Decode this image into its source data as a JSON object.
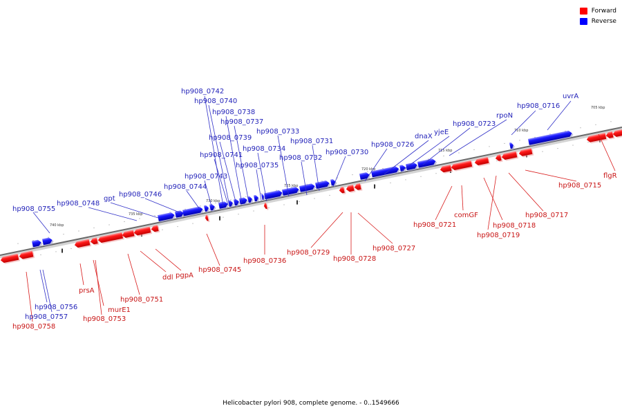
{
  "legend": {
    "forward_label": "Forward",
    "reverse_label": "Reverse",
    "forward_color": "#ff0000",
    "reverse_color": "#0000ff"
  },
  "caption": "Helicobacter pylori 908, complete genome. - 0..1549666",
  "scale_marks": [
    "740 kbp",
    "735 kbp",
    "730 kbp",
    "725 kbp",
    "720 kbp",
    "715 kbp",
    "710 kbp",
    "705 kbp"
  ],
  "reverse_labels": [
    "hp908_0755",
    "hp908_0748",
    "gpt",
    "hp908_0746",
    "hp908_0744",
    "hp908_0743",
    "hp908_0742",
    "hp908_0740",
    "hp908_0738",
    "hp908_0737",
    "hp908_0739",
    "hp908_0741",
    "hp908_0734",
    "hp908_0735",
    "hp908_0733",
    "hp908_0732",
    "hp908_0731",
    "hp908_0730",
    "hp908_0726",
    "dnaX",
    "yjeE",
    "hp908_0723",
    "rpoN",
    "hp908_0716",
    "uvrA",
    "hp908_0756",
    "hp908_0757"
  ],
  "forward_labels": [
    "hp908_0758",
    "prsA",
    "murE1",
    "hp908_0753",
    "hp908_0751",
    "ddl",
    "pgpA",
    "hp908_0745",
    "hp908_0736",
    "hp908_0729",
    "hp908_0728",
    "hp908_0727",
    "hp908_0721",
    "comGF",
    "hp908_0718",
    "hp908_0719",
    "hp908_0717",
    "hp908_0715",
    "flgR"
  ]
}
